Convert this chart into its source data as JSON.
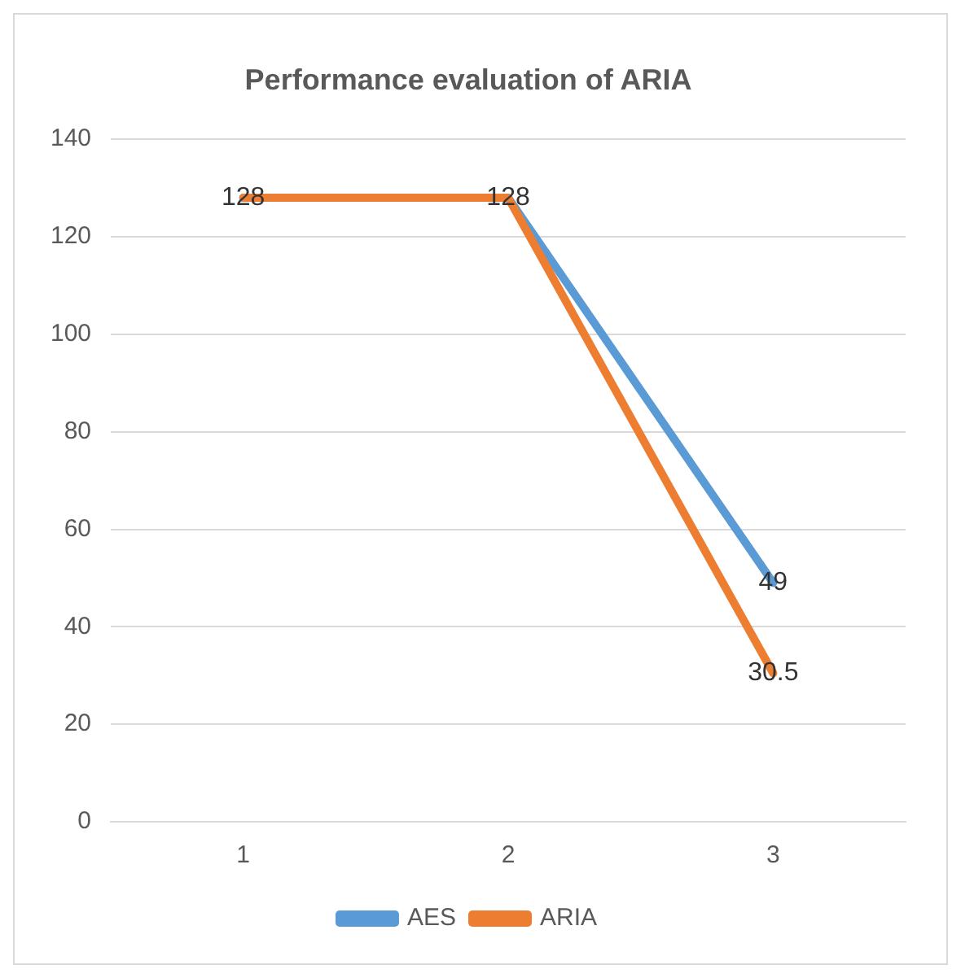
{
  "chart_data": {
    "type": "line",
    "title": "Performance evaluation of ARIA",
    "categories": [
      "1",
      "2",
      "3"
    ],
    "series": [
      {
        "name": "AES",
        "color": "#5b9bd5",
        "values": [
          128,
          128,
          49
        ],
        "value_labels": [
          null,
          null,
          "49"
        ]
      },
      {
        "name": "ARIA",
        "color": "#ed7d31",
        "values": [
          128,
          128,
          30.5
        ],
        "value_labels": [
          "128",
          "128",
          "30.5"
        ]
      }
    ],
    "ylim": [
      0,
      140
    ],
    "yticks": [
      0,
      20,
      40,
      60,
      80,
      100,
      120,
      140
    ],
    "grid": "y",
    "legend": "bottom",
    "marker": "none",
    "line_style": "solid"
  }
}
